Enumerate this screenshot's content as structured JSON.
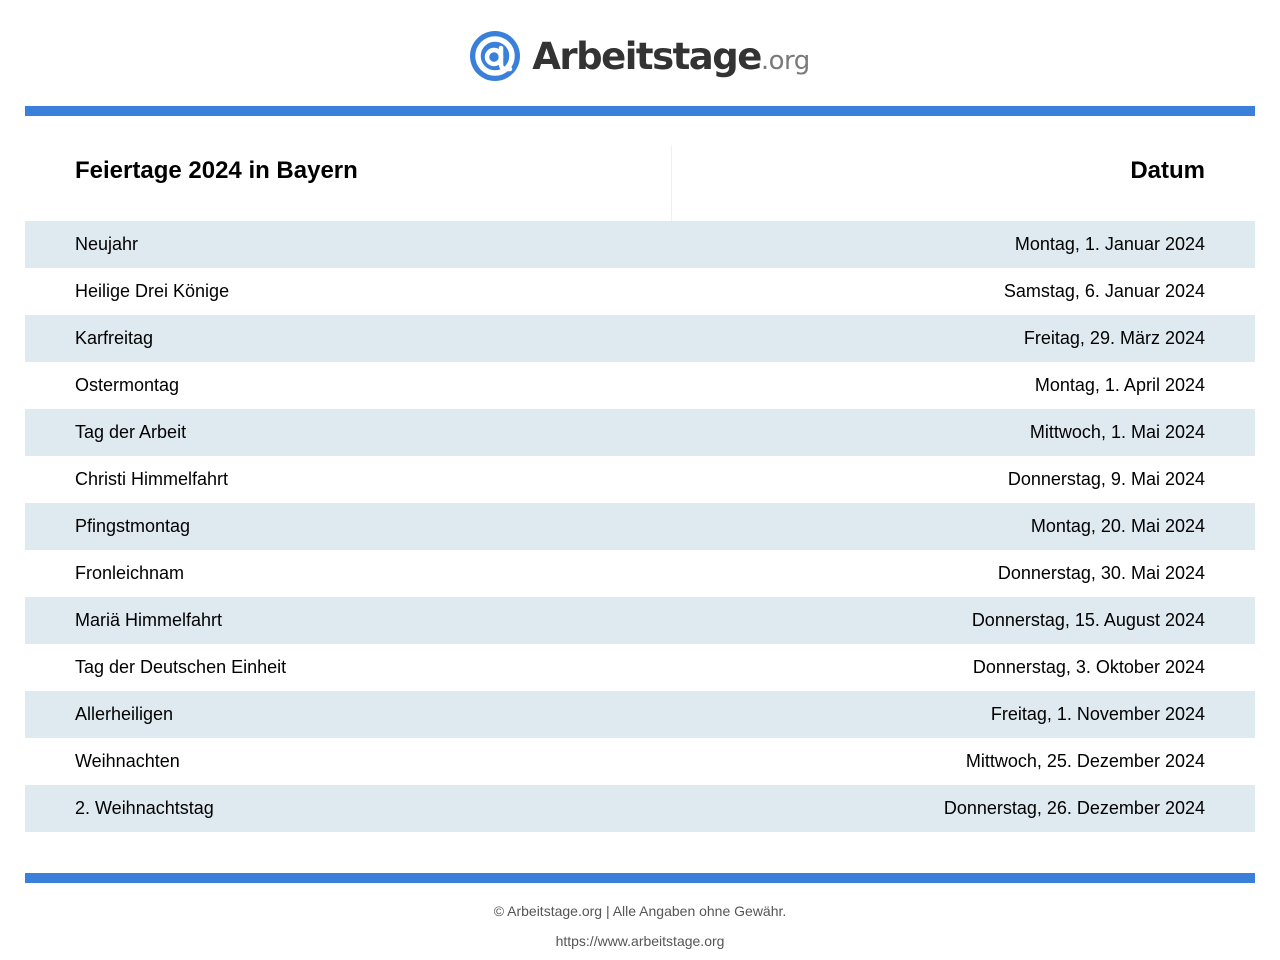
{
  "brand": {
    "name": "Arbeitstage",
    "tld": ".org",
    "accent_color": "#3a7fd9",
    "icon": "at-sign-icon"
  },
  "table": {
    "header_name": "Feiertage 2024 in Bayern",
    "header_date": "Datum",
    "row_shade_color": "#dfe9f0",
    "rows": [
      {
        "name": "Neujahr",
        "date": "Montag, 1. Januar 2024"
      },
      {
        "name": "Heilige Drei Könige",
        "date": "Samstag, 6. Januar 2024"
      },
      {
        "name": "Karfreitag",
        "date": "Freitag, 29. März 2024"
      },
      {
        "name": "Ostermontag",
        "date": "Montag, 1. April 2024"
      },
      {
        "name": "Tag der Arbeit",
        "date": "Mittwoch, 1. Mai 2024"
      },
      {
        "name": "Christi Himmelfahrt",
        "date": "Donnerstag, 9. Mai 2024"
      },
      {
        "name": "Pfingstmontag",
        "date": "Montag, 20. Mai 2024"
      },
      {
        "name": "Fronleichnam",
        "date": "Donnerstag, 30. Mai 2024"
      },
      {
        "name": "Mariä Himmelfahrt",
        "date": "Donnerstag, 15. August 2024"
      },
      {
        "name": "Tag der Deutschen Einheit",
        "date": "Donnerstag, 3. Oktober 2024"
      },
      {
        "name": "Allerheiligen",
        "date": "Freitag, 1. November 2024"
      },
      {
        "name": "Weihnachten",
        "date": "Mittwoch, 25. Dezember 2024"
      },
      {
        "name": "2. Weihnachtstag",
        "date": "Donnerstag, 26. Dezember 2024"
      }
    ]
  },
  "footer": {
    "copyright": "© Arbeitstage.org | Alle Angaben ohne Gewähr.",
    "url": "https://www.arbeitstage.org"
  }
}
